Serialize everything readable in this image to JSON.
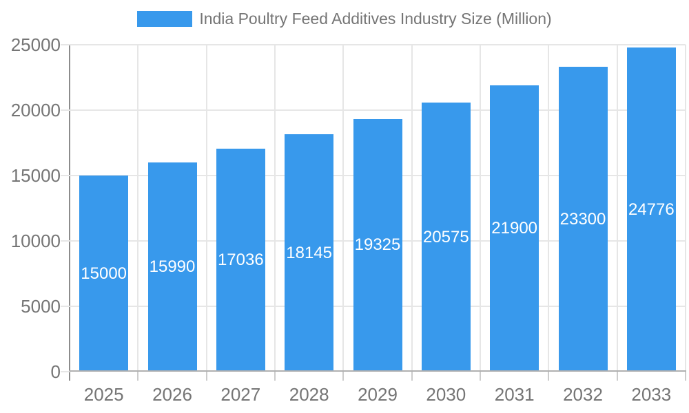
{
  "chart_data": {
    "type": "bar",
    "title": "India Poultry Feed Additives Industry Size (Million)",
    "categories": [
      "2025",
      "2026",
      "2027",
      "2028",
      "2029",
      "2030",
      "2031",
      "2032",
      "2033"
    ],
    "values": [
      15000,
      15990,
      17036,
      18145,
      19325,
      20575,
      21900,
      23300,
      24776
    ],
    "value_labels": [
      "15000",
      "15990",
      "17036",
      "18145",
      "19325",
      "20575",
      "21900",
      "23300",
      "24776"
    ],
    "xlabel": "",
    "ylabel": "",
    "ylim": [
      0,
      25000
    ],
    "yticks": [
      0,
      5000,
      10000,
      15000,
      20000,
      25000
    ],
    "ytick_labels": [
      "0",
      "5000",
      "10000",
      "15000",
      "20000",
      "25000"
    ],
    "grid": true,
    "legend_position": "top-center",
    "colors": {
      "bar": "#3899ec",
      "axis_text": "#757575",
      "value_text": "#ffffff",
      "gridline": "#e6e6e6",
      "axis_line": "#8c8c8c",
      "baseline": "#b0b0b0",
      "tick": "#cccccc",
      "background": "#ffffff"
    }
  }
}
